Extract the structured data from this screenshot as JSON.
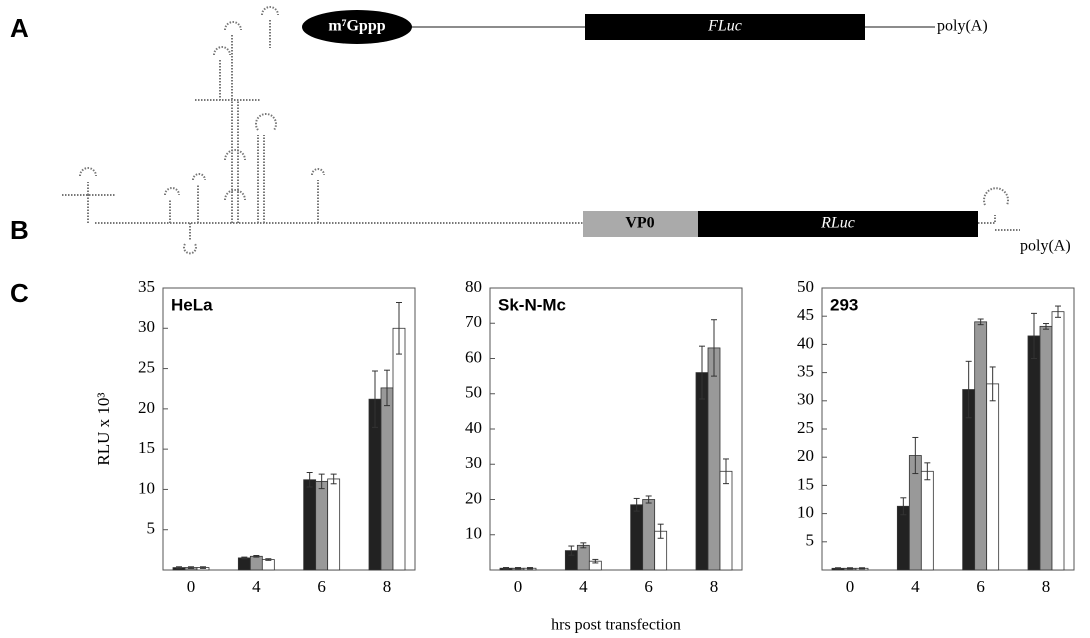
{
  "panels": {
    "a": {
      "label": "A",
      "cap": "m⁷Gppp",
      "gene": "FLuc",
      "tail": "poly(A)"
    },
    "b": {
      "label": "B",
      "leader": "VP0",
      "gene": "RLuc",
      "tail": "poly(A)"
    },
    "c": {
      "label": "C"
    }
  },
  "chart_data": [
    {
      "type": "bar",
      "title": "HeLa",
      "ylabel": "RLU x 10³",
      "categories": [
        "0",
        "4",
        "6",
        "8"
      ],
      "ylim": [
        0,
        35
      ],
      "yticks": [
        5,
        10,
        15,
        20,
        25,
        30,
        35
      ],
      "series": [
        {
          "color": "#222222",
          "values": [
            0.3,
            1.5,
            11.2,
            21.2
          ],
          "errors": [
            0.1,
            0.1,
            0.9,
            3.5
          ]
        },
        {
          "color": "#999999",
          "values": [
            0.3,
            1.7,
            11.0,
            22.6
          ],
          "errors": [
            0.1,
            0.1,
            0.9,
            2.2
          ]
        },
        {
          "color": "#ffffff",
          "values": [
            0.3,
            1.3,
            11.3,
            30.0
          ],
          "errors": [
            0.1,
            0.1,
            0.6,
            3.2
          ]
        }
      ]
    },
    {
      "type": "bar",
      "title": "Sk-N-Mc",
      "xlabel": "hrs post transfection",
      "categories": [
        "0",
        "4",
        "6",
        "8"
      ],
      "ylim": [
        0,
        80
      ],
      "yticks": [
        10,
        20,
        30,
        40,
        50,
        60,
        70,
        80
      ],
      "series": [
        {
          "color": "#222222",
          "values": [
            0.5,
            5.5,
            18.5,
            56
          ],
          "errors": [
            0.2,
            1.3,
            1.8,
            7.5
          ]
        },
        {
          "color": "#999999",
          "values": [
            0.5,
            7,
            20,
            63
          ],
          "errors": [
            0.2,
            0.7,
            1,
            8
          ]
        },
        {
          "color": "#ffffff",
          "values": [
            0.5,
            2.5,
            11,
            28
          ],
          "errors": [
            0.2,
            0.5,
            2,
            3.5
          ]
        }
      ]
    },
    {
      "type": "bar",
      "title": "293",
      "categories": [
        "0",
        "4",
        "6",
        "8"
      ],
      "ylim": [
        0,
        50
      ],
      "yticks": [
        5,
        10,
        15,
        20,
        25,
        30,
        35,
        40,
        45,
        50
      ],
      "series": [
        {
          "color": "#222222",
          "values": [
            0.3,
            11.3,
            32,
            41.5
          ],
          "errors": [
            0.1,
            1.5,
            5,
            4
          ]
        },
        {
          "color": "#999999",
          "values": [
            0.3,
            20.3,
            44,
            43.2
          ],
          "errors": [
            0.1,
            3.2,
            0.5,
            0.5
          ]
        },
        {
          "color": "#ffffff",
          "values": [
            0.3,
            17.5,
            33,
            45.8
          ],
          "errors": [
            0.1,
            1.5,
            3,
            1
          ]
        }
      ]
    }
  ]
}
